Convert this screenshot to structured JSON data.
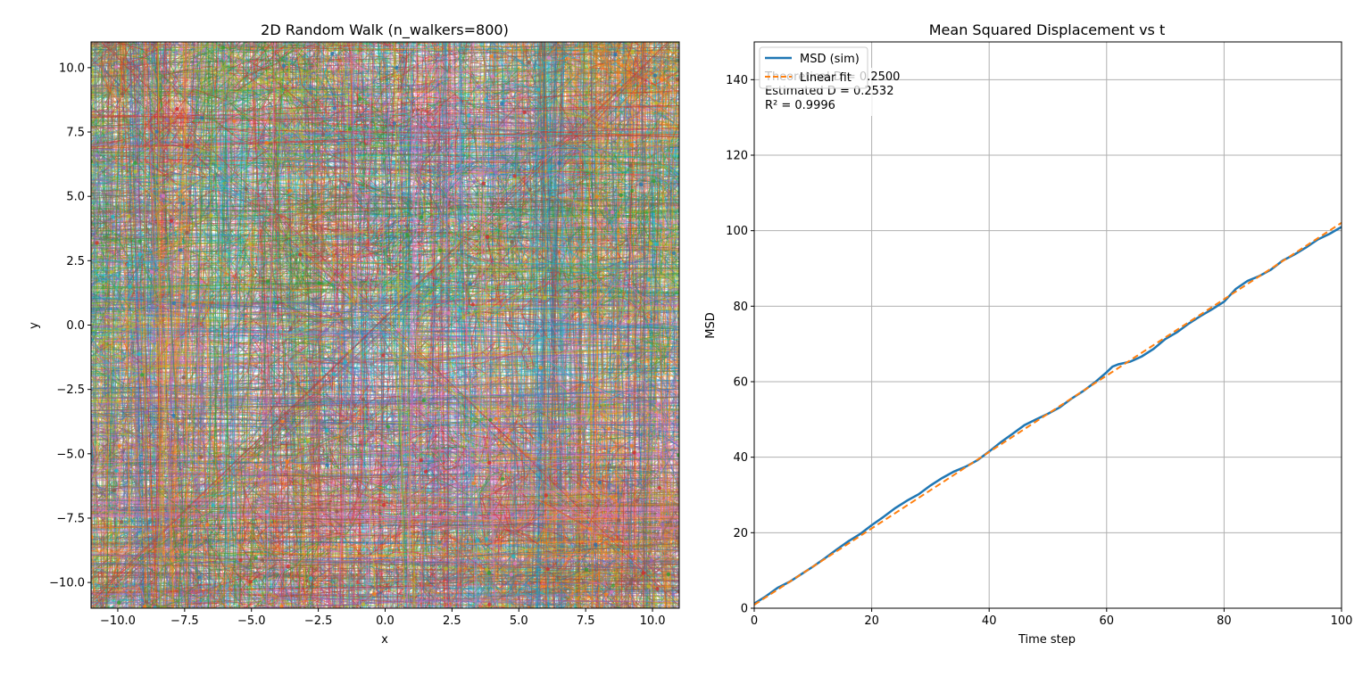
{
  "chart_data": [
    {
      "type": "line",
      "title": "2D Random Walk (n_walkers=800)",
      "xlabel": "x",
      "ylabel": "y",
      "xlim": [
        -11,
        11
      ],
      "ylim": [
        -11,
        11
      ],
      "xticks": [
        -10.0,
        -7.5,
        -5.0,
        -2.5,
        0.0,
        2.5,
        5.0,
        7.5,
        10.0
      ],
      "yticks": [
        -10.0,
        -7.5,
        -5.0,
        -2.5,
        0.0,
        2.5,
        5.0,
        7.5,
        10.0
      ],
      "grid": false,
      "n_walkers": 800,
      "palette": [
        "#1f77b4",
        "#ff7f0e",
        "#2ca02c",
        "#d62728",
        "#9467bd",
        "#8c564b",
        "#e377c2",
        "#7f7f7f",
        "#bcbd22",
        "#17becf"
      ]
    },
    {
      "type": "line",
      "title": "Mean Squared Displacement vs t",
      "xlabel": "Time step",
      "ylabel": "MSD",
      "xlim": [
        0,
        100
      ],
      "ylim": [
        0,
        150
      ],
      "xticks": [
        0,
        20,
        40,
        60,
        80,
        100
      ],
      "yticks": [
        0,
        20,
        40,
        60,
        80,
        100,
        120,
        140
      ],
      "grid": true,
      "legend": {
        "placement": "upper-left",
        "entries": [
          "MSD (sim)",
          "Linear fit"
        ]
      },
      "annotation": [
        "Theoretical D = 0.2500",
        "Estimated D = 0.2532",
        "R² = 0.9996"
      ],
      "series": [
        {
          "name": "MSD (sim)",
          "color": "#1f77b4",
          "style": "solid",
          "x": [
            0,
            2,
            4,
            6,
            8,
            10,
            12,
            14,
            16,
            18,
            20,
            22,
            24,
            26,
            28,
            30,
            32,
            34,
            36,
            38,
            40,
            42,
            44,
            46,
            48,
            50,
            52,
            54,
            56,
            58,
            60,
            61,
            62,
            64,
            66,
            68,
            70,
            72,
            74,
            76,
            78,
            80,
            82,
            84,
            86,
            88,
            90,
            92,
            94,
            96,
            98,
            100
          ],
          "y": [
            1.2,
            3.2,
            5.4,
            7.0,
            9.0,
            11.0,
            13.2,
            15.5,
            17.7,
            19.6,
            22.0,
            24.2,
            26.5,
            28.5,
            30.2,
            32.5,
            34.5,
            36.2,
            37.5,
            39.2,
            41.5,
            44.0,
            46.2,
            48.5,
            50.0,
            51.5,
            53.2,
            55.5,
            57.5,
            59.8,
            62.5,
            64.0,
            64.6,
            65.3,
            66.7,
            68.7,
            71.3,
            73.1,
            75.4,
            77.4,
            79.2,
            81.2,
            84.6,
            86.7,
            88.0,
            89.7,
            92.1,
            93.7,
            95.6,
            97.7,
            99.2,
            101.0
          ]
        },
        {
          "name": "Linear fit",
          "color": "#ff7f0e",
          "style": "dashed",
          "x": [
            0,
            100
          ],
          "y": [
            0.9,
            102.1
          ]
        }
      ]
    }
  ]
}
